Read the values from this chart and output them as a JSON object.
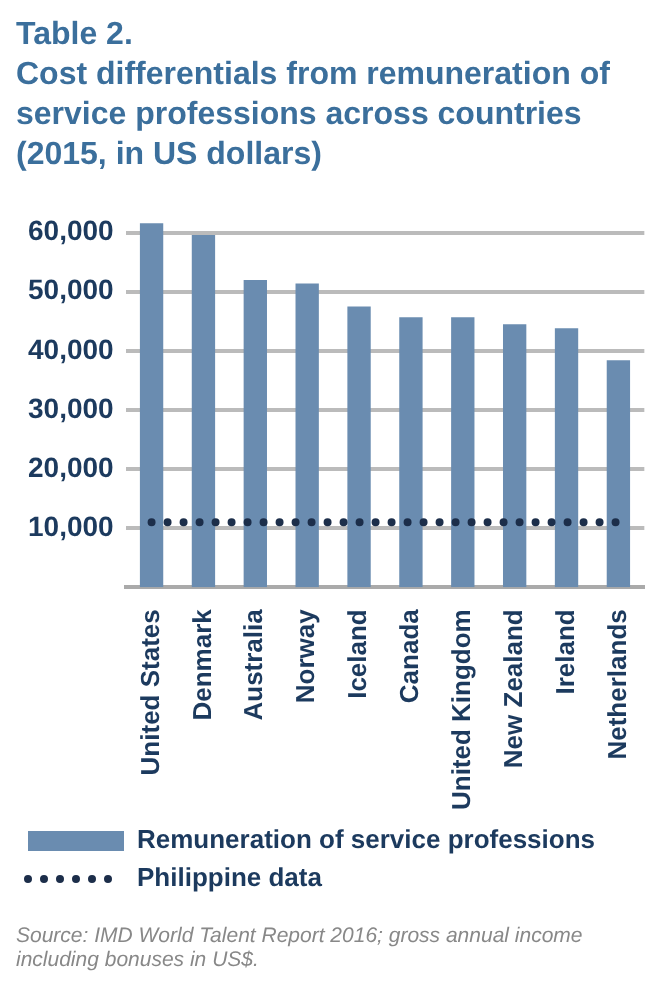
{
  "chart_data": {
    "type": "bar",
    "title": "Table 2.\nCost differentials from remuneration of service professions across countries (2015, in US dollars)",
    "categories": [
      "United States",
      "Denmark",
      "Australia",
      "Norway",
      "Iceland",
      "Canada",
      "United Kingdom",
      "New Zealand",
      "Ireland",
      "Netherlands"
    ],
    "series": [
      {
        "name": "Remuneration of service professions",
        "color": "#6a8cb0",
        "values": [
          61600,
          59600,
          52000,
          51400,
          47500,
          45700,
          45700,
          44500,
          43800,
          38400
        ]
      },
      {
        "name": "Philippine data",
        "type": "line",
        "color": "#1c2e4a",
        "line_style": "dotted",
        "marker": "none",
        "values": [
          11000,
          11000,
          11000,
          11000,
          11000,
          11000,
          11000,
          11000,
          11000,
          11000
        ]
      }
    ],
    "ylim": [
      0,
      62000
    ],
    "yticks": [
      {
        "value": 10000,
        "label": "10,000"
      },
      {
        "value": 20000,
        "label": "20,000"
      },
      {
        "value": 30000,
        "label": "30,000"
      },
      {
        "value": 40000,
        "label": "40,000"
      },
      {
        "value": 50000,
        "label": "50,000"
      },
      {
        "value": 60000,
        "label": "60,000"
      }
    ],
    "grid": "y",
    "legend": "bottom",
    "annotations": [
      "Source: IMD World Talent Report 2016; gross annual income including bonuses in US$."
    ]
  }
}
